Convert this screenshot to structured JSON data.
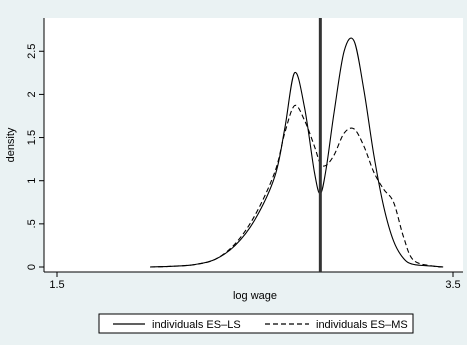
{
  "chart_data": {
    "type": "line",
    "title": "",
    "xlabel": "log wage",
    "ylabel": "density",
    "xlim": [
      1.5,
      3.5
    ],
    "ylim": [
      0,
      2.7
    ],
    "x_ticks": [
      {
        "value": 1.5,
        "label": "1.5"
      },
      {
        "value": 3.5,
        "label": "3.5"
      }
    ],
    "y_ticks": [
      {
        "value": 0,
        "label": "0"
      },
      {
        "value": 0.5,
        "label": ".5"
      },
      {
        "value": 1,
        "label": "1"
      },
      {
        "value": 1.5,
        "label": "1.5"
      },
      {
        "value": 2,
        "label": "2"
      },
      {
        "value": 2.5,
        "label": "2.5"
      }
    ],
    "vertical_line": {
      "x": 2.83
    },
    "grid": false,
    "legend": {
      "placement": "bottom"
    },
    "colors": {
      "background": "#eaf2f3",
      "plot_background": "#ffffff",
      "line": "#000000",
      "vline": "#333333"
    },
    "series": [
      {
        "name": "individuals ES–LS",
        "style": "solid",
        "x": [
          1.97,
          2.1,
          2.2,
          2.3,
          2.4,
          2.5,
          2.6,
          2.65,
          2.7,
          2.75,
          2.8,
          2.83,
          2.86,
          2.9,
          2.95,
          3.0,
          3.05,
          3.1,
          3.15,
          3.2,
          3.25,
          3.3,
          3.4,
          3.45
        ],
        "y": [
          0.0,
          0.01,
          0.03,
          0.09,
          0.25,
          0.55,
          1.05,
          1.6,
          2.25,
          1.85,
          1.1,
          0.85,
          1.15,
          1.8,
          2.5,
          2.62,
          2.05,
          1.3,
          0.7,
          0.3,
          0.1,
          0.03,
          0.01,
          0.0
        ]
      },
      {
        "name": "individuals ES–MS",
        "style": "dashed",
        "x": [
          1.97,
          2.1,
          2.2,
          2.3,
          2.4,
          2.5,
          2.6,
          2.65,
          2.7,
          2.75,
          2.8,
          2.83,
          2.86,
          2.9,
          2.95,
          3.0,
          3.05,
          3.1,
          3.15,
          3.2,
          3.25,
          3.3,
          3.4,
          3.45
        ],
        "y": [
          0.0,
          0.01,
          0.03,
          0.09,
          0.27,
          0.6,
          1.1,
          1.55,
          1.87,
          1.7,
          1.4,
          1.2,
          1.18,
          1.3,
          1.55,
          1.6,
          1.4,
          1.1,
          0.9,
          0.75,
          0.35,
          0.08,
          0.01,
          0.0
        ]
      }
    ]
  }
}
